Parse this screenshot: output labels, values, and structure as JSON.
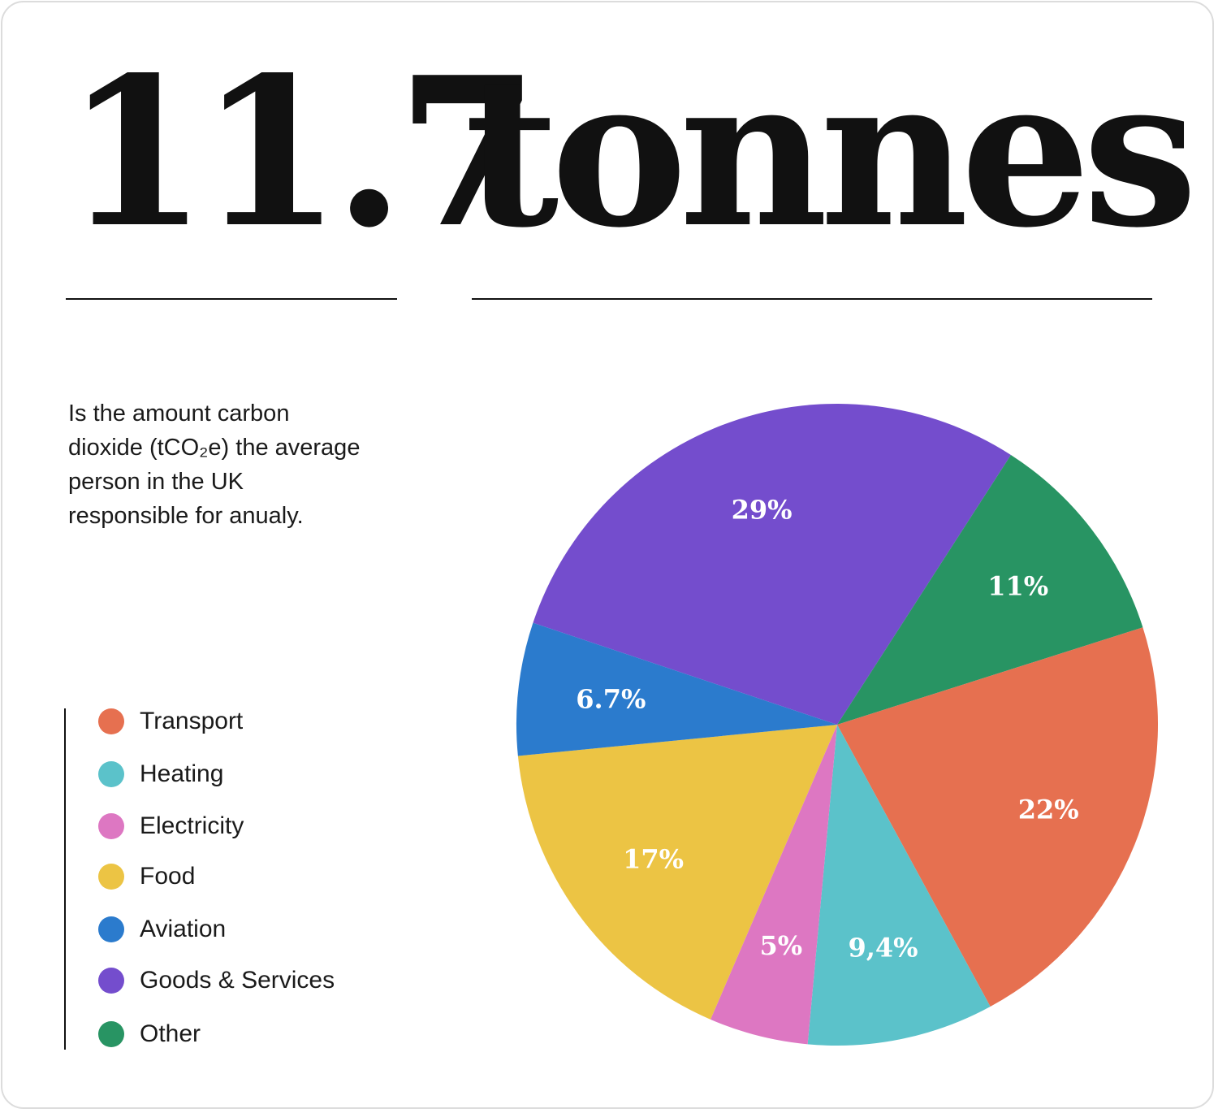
{
  "headline": {
    "number": "11.7",
    "unit": "tonnes"
  },
  "description": {
    "lines": [
      "Is the amount carbon",
      "dioxide (tCO₂e) the average",
      "person  in the UK",
      "responsible for anualy."
    ]
  },
  "legend": {
    "items": [
      {
        "label": "Transport",
        "color": "#e67050"
      },
      {
        "label": "Heating",
        "color": "#5bc2ca"
      },
      {
        "label": "Electricity",
        "color": "#dd77c2"
      },
      {
        "label": "Food",
        "color": "#ecc444"
      },
      {
        "label": "Aviation",
        "color": "#2b7bcd"
      },
      {
        "label": "Goods & Services",
        "color": "#744dcd"
      },
      {
        "label": "Other",
        "color": "#289463"
      }
    ]
  },
  "chart_data": {
    "type": "pie",
    "title": "",
    "legend_position": "left",
    "slices": [
      {
        "name": "Goods & Services",
        "value": 29,
        "label": "29%",
        "color": "#744dcd"
      },
      {
        "name": "Other",
        "value": 11,
        "label": "11%",
        "color": "#289463"
      },
      {
        "name": "Transport",
        "value": 22,
        "label": "22%",
        "color": "#e67050"
      },
      {
        "name": "Heating",
        "value": 9.4,
        "label": "9,4%",
        "color": "#5bc2ca"
      },
      {
        "name": "Electricity",
        "value": 5,
        "label": "5%",
        "color": "#dd77c2"
      },
      {
        "name": "Food",
        "value": 17,
        "label": "17%",
        "color": "#ecc444"
      },
      {
        "name": "Aviation",
        "value": 6.7,
        "label": "6.7%",
        "color": "#2b7bcd"
      }
    ]
  }
}
